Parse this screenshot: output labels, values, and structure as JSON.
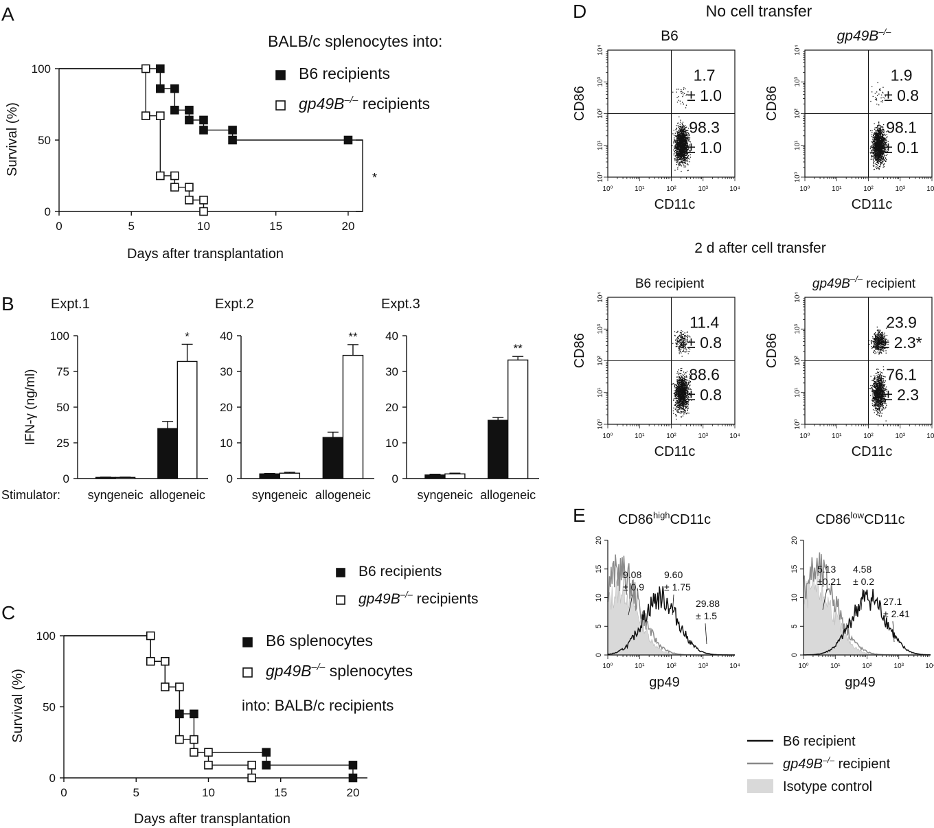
{
  "panels": {
    "A": {
      "letter": "A",
      "legend_title": "BALB/c splenocytes into:",
      "legend": [
        {
          "italic": "",
          "text": "B6 recipients",
          "fill": "#111111"
        },
        {
          "italic": "gp49B",
          "sup": "–/–",
          "text": " recipients",
          "fill": "#ffffff"
        }
      ],
      "sig": "*"
    },
    "B": {
      "letter": "B",
      "stimulator_label": "Stimulator:",
      "ylabel": "IFN-γ (ng/ml)",
      "legend": [
        {
          "italic": "",
          "text": "B6 recipients",
          "fill": "#111111"
        },
        {
          "italic": "gp49B",
          "sup": "–/–",
          "text": " recipients",
          "fill": "#ffffff"
        }
      ]
    },
    "C": {
      "letter": "C",
      "legend": [
        {
          "italic": "",
          "text": "B6 splenocytes",
          "fill": "#111111"
        },
        {
          "italic": "gp49B",
          "sup": "–/–",
          "text": " splenocytes",
          "fill": "#ffffff"
        }
      ],
      "note": "into: BALB/c recipients"
    },
    "D": {
      "letter": "D",
      "header_top": "No cell transfer",
      "header_bottom": "2 d after cell transfer",
      "xlabel": "CD11c",
      "ylabel": "CD86",
      "ticks": [
        "10⁰",
        "10¹",
        "10²",
        "10³",
        "10⁴"
      ]
    },
    "E": {
      "letter": "E",
      "xlabel": "gp49",
      "ticks": [
        "10⁰",
        "10¹",
        "10²",
        "10³",
        "10⁴"
      ],
      "legend": [
        {
          "label": "B6 recipient",
          "italic": "",
          "color": "#111111",
          "kind": "line"
        },
        {
          "label": " recipient",
          "italic": "gp49B",
          "sup": "–/–",
          "color": "#888888",
          "kind": "line"
        },
        {
          "label": "Isotype control",
          "italic": "",
          "color": "#d9d9d9",
          "kind": "fill"
        }
      ]
    }
  },
  "chart_data": [
    {
      "id": "A",
      "type": "line",
      "xlabel": "Days after transplantation",
      "ylabel": "Survival (%)",
      "xlim": [
        0,
        21
      ],
      "ylim": [
        0,
        100
      ],
      "xticks": [
        0,
        5,
        10,
        15,
        20
      ],
      "yticks": [
        0,
        50,
        100
      ],
      "series": [
        {
          "name": "B6 recipients",
          "marker": "filled",
          "steps": [
            [
              0,
              100
            ],
            [
              7,
              100
            ],
            [
              7,
              86
            ],
            [
              8,
              86
            ],
            [
              8,
              71
            ],
            [
              9,
              71
            ],
            [
              9,
              64
            ],
            [
              10,
              64
            ],
            [
              10,
              57
            ],
            [
              12,
              57
            ],
            [
              12,
              50
            ],
            [
              21,
              50
            ]
          ],
          "markers": [
            [
              7,
              100
            ],
            [
              7,
              86
            ],
            [
              8,
              86
            ],
            [
              8,
              71
            ],
            [
              9,
              71
            ],
            [
              9,
              64
            ],
            [
              10,
              64
            ],
            [
              10,
              57
            ],
            [
              12,
              57
            ],
            [
              12,
              50
            ],
            [
              20,
              50
            ]
          ]
        },
        {
          "name": "gp49B–/– recipients",
          "marker": "open",
          "steps": [
            [
              0,
              100
            ],
            [
              6,
              100
            ],
            [
              6,
              67
            ],
            [
              7,
              67
            ],
            [
              7,
              25
            ],
            [
              8,
              25
            ],
            [
              8,
              17
            ],
            [
              9,
              17
            ],
            [
              9,
              8
            ],
            [
              10,
              8
            ],
            [
              10,
              0
            ]
          ],
          "markers": [
            [
              6,
              100
            ],
            [
              6,
              67
            ],
            [
              7,
              67
            ],
            [
              7,
              25
            ],
            [
              8,
              25
            ],
            [
              8,
              17
            ],
            [
              9,
              17
            ],
            [
              9,
              8
            ],
            [
              10,
              8
            ],
            [
              10,
              0
            ]
          ]
        }
      ]
    },
    {
      "id": "B",
      "type": "bar",
      "subplots": [
        {
          "title": "Expt.1",
          "ylim": [
            0,
            100
          ],
          "yticks": [
            0,
            25,
            50,
            75,
            100
          ],
          "categories": [
            "syngeneic",
            "allogeneic"
          ],
          "series": [
            {
              "name": "B6 recipients",
              "values": [
                0.8,
                35
              ],
              "errors": [
                0.2,
                5
              ]
            },
            {
              "name": "gp49B–/– recipients",
              "values": [
                0.8,
                82
              ],
              "errors": [
                0.2,
                12
              ]
            }
          ],
          "sig": [
            "",
            "*"
          ]
        },
        {
          "title": "Expt.2",
          "ylim": [
            0,
            40
          ],
          "yticks": [
            0,
            10,
            20,
            30,
            40
          ],
          "categories": [
            "syngeneic",
            "allogeneic"
          ],
          "series": [
            {
              "name": "B6 recipients",
              "values": [
                1.3,
                11.5
              ],
              "errors": [
                0.1,
                1.5
              ]
            },
            {
              "name": "gp49B–/– recipients",
              "values": [
                1.5,
                34.5
              ],
              "errors": [
                0.3,
                3
              ]
            }
          ],
          "sig": [
            "",
            "**"
          ]
        },
        {
          "title": "Expt.3",
          "ylim": [
            0,
            40
          ],
          "yticks": [
            0,
            10,
            20,
            30,
            40
          ],
          "categories": [
            "syngeneic",
            "allogeneic"
          ],
          "series": [
            {
              "name": "B6 recipients",
              "values": [
                1.0,
                16.3
              ],
              "errors": [
                0.2,
                0.8
              ]
            },
            {
              "name": "gp49B–/– recipients",
              "values": [
                1.3,
                33.2
              ],
              "errors": [
                0.2,
                1
              ]
            }
          ],
          "sig": [
            "",
            "**"
          ]
        }
      ]
    },
    {
      "id": "C",
      "type": "line",
      "xlabel": "Days after transplantation",
      "ylabel": "Survival (%)",
      "xlim": [
        0,
        21
      ],
      "ylim": [
        0,
        100
      ],
      "xticks": [
        0,
        5,
        10,
        15,
        20
      ],
      "yticks": [
        0,
        50,
        100
      ],
      "series": [
        {
          "name": "B6 splenocytes",
          "marker": "filled",
          "steps": [
            [
              0,
              100
            ],
            [
              6,
              100
            ],
            [
              6,
              82
            ],
            [
              7,
              82
            ],
            [
              7,
              64
            ],
            [
              8,
              64
            ],
            [
              8,
              45
            ],
            [
              9,
              45
            ],
            [
              9,
              18
            ],
            [
              14,
              18
            ],
            [
              14,
              9
            ],
            [
              20,
              9
            ],
            [
              20,
              0
            ]
          ],
          "markers": [
            [
              8,
              45
            ],
            [
              9,
              45
            ],
            [
              14,
              18
            ],
            [
              14,
              9
            ],
            [
              20,
              9
            ],
            [
              20,
              0
            ]
          ]
        },
        {
          "name": "gp49B–/– splenocytes",
          "marker": "open",
          "steps": [
            [
              0,
              100
            ],
            [
              6,
              100
            ],
            [
              6,
              82
            ],
            [
              7,
              82
            ],
            [
              7,
              64
            ],
            [
              8,
              64
            ],
            [
              8,
              27
            ],
            [
              9,
              27
            ],
            [
              9,
              18
            ],
            [
              10,
              18
            ],
            [
              10,
              9
            ],
            [
              13,
              9
            ],
            [
              13,
              0
            ]
          ],
          "markers": [
            [
              6,
              100
            ],
            [
              6,
              82
            ],
            [
              7,
              82
            ],
            [
              7,
              64
            ],
            [
              8,
              64
            ],
            [
              8,
              27
            ],
            [
              9,
              27
            ],
            [
              9,
              18
            ],
            [
              10,
              18
            ],
            [
              10,
              9
            ],
            [
              13,
              9
            ],
            [
              13,
              0
            ]
          ]
        }
      ]
    },
    {
      "id": "D",
      "type": "scatter",
      "plots": [
        {
          "title": "B6",
          "upper": [
            "1.7",
            "± 1.0"
          ],
          "lower": [
            "98.3",
            "± 1.0"
          ]
        },
        {
          "title_italic": "gp49B",
          "title_sup": "–/–",
          "upper": [
            "1.9",
            "± 0.8"
          ],
          "lower": [
            "98.1",
            "± 0.1"
          ]
        },
        {
          "title": "B6 recipient",
          "upper": [
            "11.4",
            "± 0.8"
          ],
          "lower": [
            "88.6",
            "± 0.8"
          ]
        },
        {
          "title_italic": "gp49B",
          "title_sup": "–/–",
          "title": " recipient",
          "upper": [
            "23.9",
            "± 2.3*"
          ],
          "lower": [
            "76.1",
            "± 2.3"
          ]
        }
      ]
    },
    {
      "id": "E",
      "type": "area",
      "plots": [
        {
          "title": "CD86",
          "title_sup": "high",
          "title_tail": "CD11c",
          "ylim": [
            0,
            20
          ],
          "yticks": [
            0,
            5,
            10,
            15,
            20
          ],
          "annotations": [
            {
              "lines": [
                "9.08",
                "± 0.9"
              ]
            },
            {
              "lines": [
                "9.60",
                "± 1.75"
              ]
            },
            {
              "lines": [
                "29.88",
                "± 1.5"
              ]
            }
          ]
        },
        {
          "title": "CD86",
          "title_sup": "low",
          "title_tail": "CD11c",
          "ylim": [
            0,
            20
          ],
          "yticks": [
            0,
            5,
            10,
            15,
            20
          ],
          "annotations": [
            {
              "lines": [
                "5.13",
                "±0.21"
              ]
            },
            {
              "lines": [
                "4.58",
                "± 0.2"
              ]
            },
            {
              "lines": [
                "27.1",
                "± 2.41"
              ]
            }
          ]
        }
      ]
    }
  ]
}
